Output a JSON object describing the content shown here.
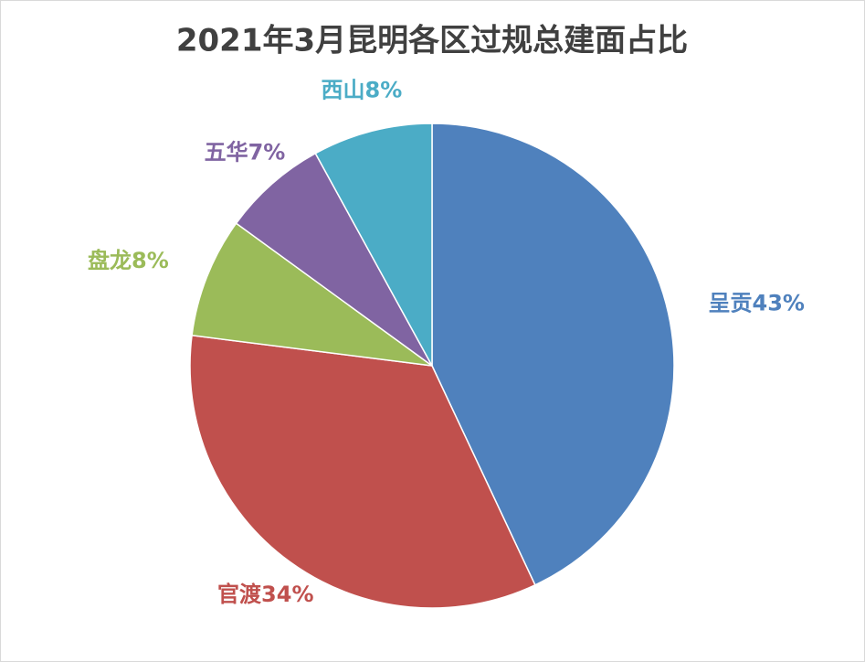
{
  "chart_data": {
    "type": "pie",
    "title": "2021年3月昆明各区过规总建面占比",
    "categories": [
      "呈贡",
      "官渡",
      "盘龙",
      "五华",
      "西山"
    ],
    "values": [
      43,
      34,
      8,
      7,
      8
    ],
    "value_labels": [
      "43%",
      "34%",
      "8%",
      "7%",
      "8%"
    ],
    "colors": [
      "#4f81bd",
      "#c0504d",
      "#9bbb59",
      "#8064a2",
      "#4bacc6"
    ]
  }
}
